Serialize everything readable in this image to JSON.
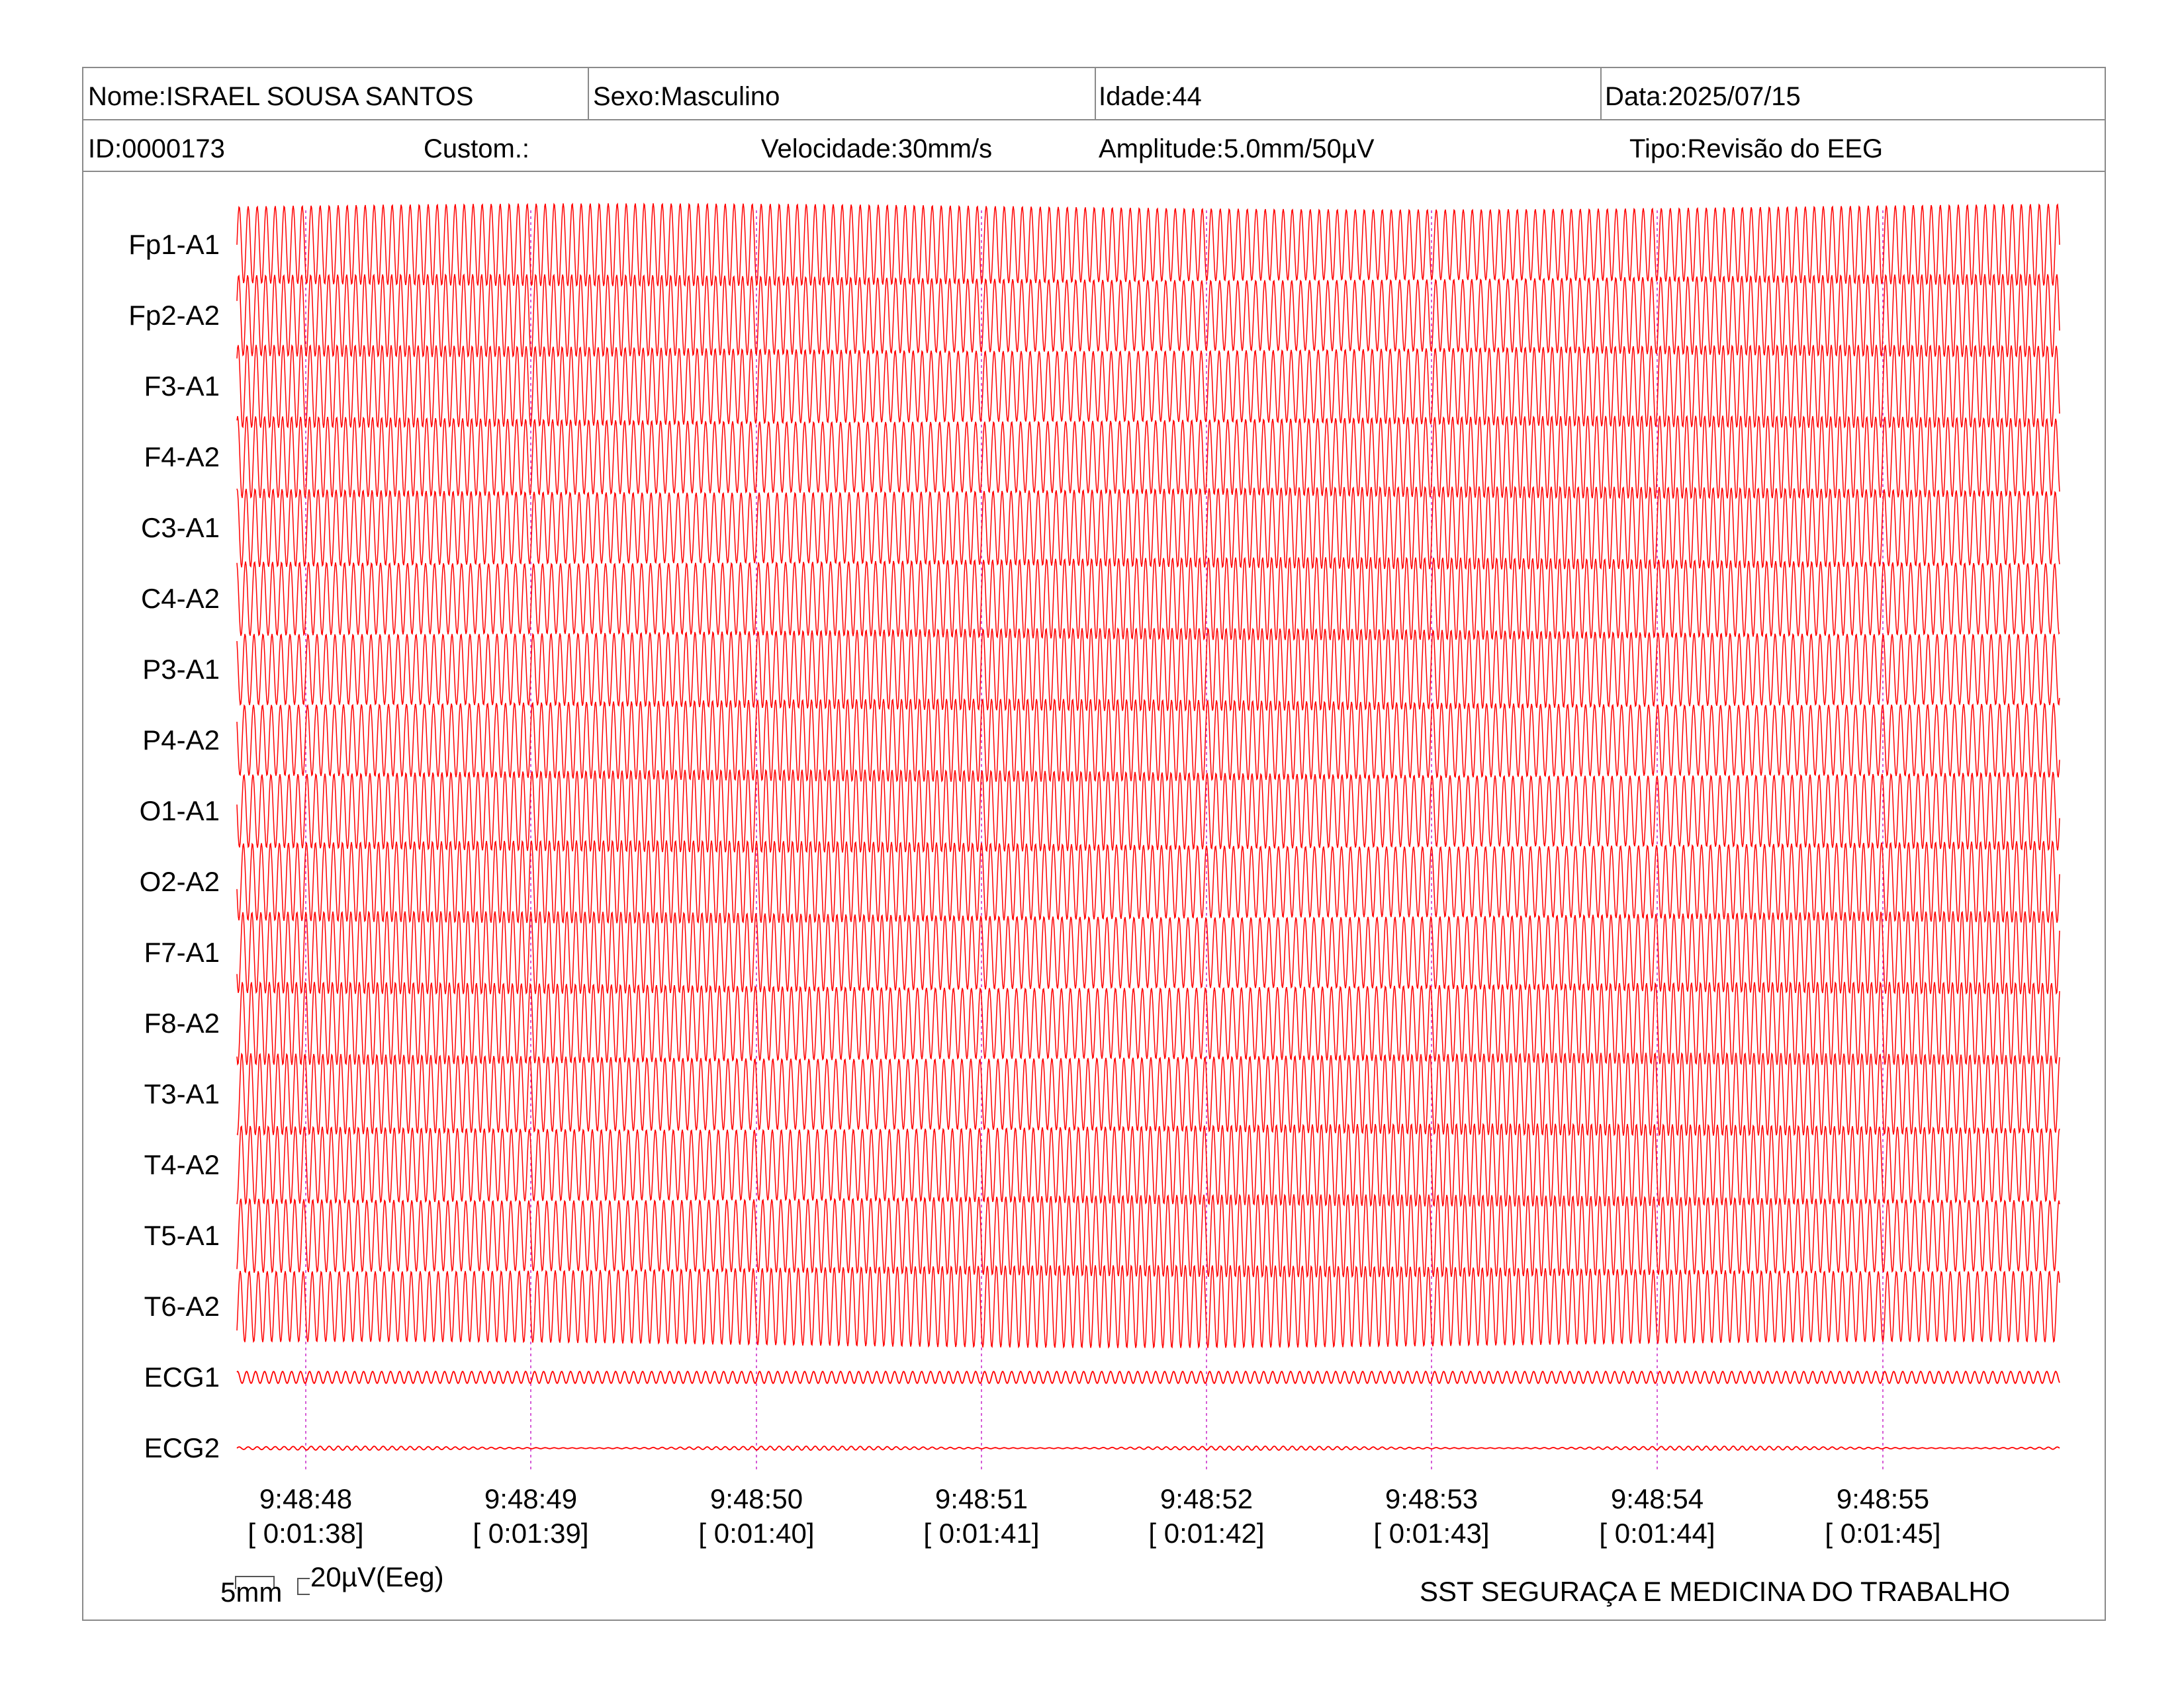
{
  "header": {
    "row1": {
      "nome": "Nome:ISRAEL SOUSA SANTOS",
      "sexo": "Sexo:Masculino",
      "idade": "Idade:44",
      "data": "Data:2025/07/15"
    },
    "row2": {
      "id": "ID:0000173",
      "custom": "Custom.:",
      "velocidade": "Velocidade:30mm/s",
      "amplitude": "Amplitude:5.0mm/50µV",
      "tipo": "Tipo:Revisão do EEG"
    }
  },
  "chart_data": {
    "type": "line",
    "trace_color": "#ff0000",
    "marker_color": "#cc33cc",
    "channels": [
      {
        "name": "Fp1-A1",
        "kind": "eeg"
      },
      {
        "name": "Fp2-A2",
        "kind": "eeg"
      },
      {
        "name": "F3-A1",
        "kind": "eeg"
      },
      {
        "name": "F4-A2",
        "kind": "eeg"
      },
      {
        "name": "C3-A1",
        "kind": "eeg"
      },
      {
        "name": "C4-A2",
        "kind": "eeg"
      },
      {
        "name": "P3-A1",
        "kind": "eeg"
      },
      {
        "name": "P4-A2",
        "kind": "eeg"
      },
      {
        "name": "O1-A1",
        "kind": "eeg"
      },
      {
        "name": "O2-A2",
        "kind": "eeg"
      },
      {
        "name": "F7-A1",
        "kind": "eeg"
      },
      {
        "name": "F8-A2",
        "kind": "eeg"
      },
      {
        "name": "T3-A1",
        "kind": "eeg"
      },
      {
        "name": "T4-A2",
        "kind": "eeg"
      },
      {
        "name": "T5-A1",
        "kind": "eeg"
      },
      {
        "name": "T6-A2",
        "kind": "eeg"
      },
      {
        "name": "ECG1",
        "kind": "ecg1"
      },
      {
        "name": "ECG2",
        "kind": "ecg2"
      }
    ],
    "time_markers": [
      {
        "clock": "9:48:48",
        "elapsed": "[ 0:01:38]"
      },
      {
        "clock": "9:48:49",
        "elapsed": "[ 0:01:39]"
      },
      {
        "clock": "9:48:50",
        "elapsed": "[ 0:01:40]"
      },
      {
        "clock": "9:48:51",
        "elapsed": "[ 0:01:41]"
      },
      {
        "clock": "9:48:52",
        "elapsed": "[ 0:01:42]"
      },
      {
        "clock": "9:48:53",
        "elapsed": "[ 0:01:43]"
      },
      {
        "clock": "9:48:54",
        "elapsed": "[ 0:01:44]"
      },
      {
        "clock": "9:48:55",
        "elapsed": "[ 0:01:45]"
      }
    ],
    "eeg_oscillation_hz": 25,
    "visible_seconds": 8.1
  },
  "scale": {
    "time": "5mm",
    "amplitude": "20µV(Eeg)"
  },
  "footer": {
    "clinic": "SST SEGURAÇA E MEDICINA DO TRABALHO"
  }
}
